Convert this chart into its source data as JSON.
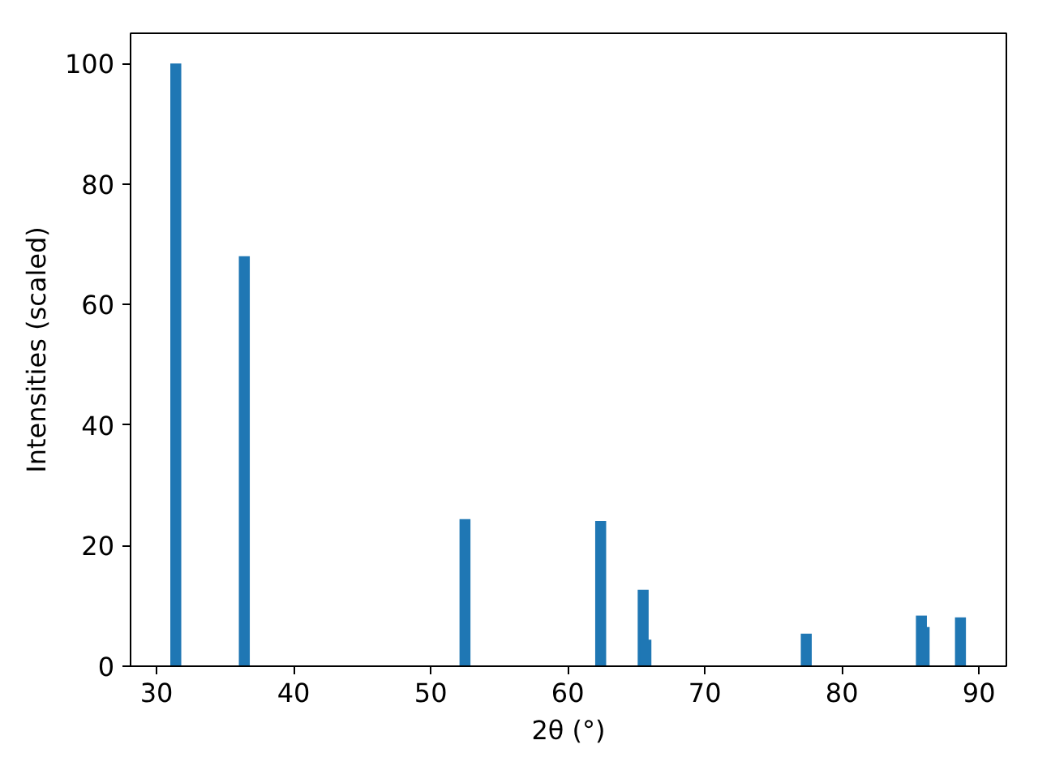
{
  "chart_data": {
    "type": "bar",
    "xlabel": "2θ (°)",
    "ylabel": "Intensities (scaled)",
    "x": [
      31.4,
      36.4,
      52.5,
      62.4,
      65.5,
      65.7,
      77.4,
      85.8,
      86.0,
      88.65
    ],
    "values": [
      100,
      68,
      24.4,
      24.1,
      12.7,
      4.4,
      5.4,
      8.4,
      6.5,
      8.1
    ],
    "color": "#1f77b4",
    "xlim": [
      28.1,
      92.0
    ],
    "xticks": [
      30,
      40,
      50,
      60,
      70,
      80,
      90
    ],
    "ylim": [
      0,
      105
    ],
    "yticks": [
      0,
      20,
      40,
      60,
      80,
      100
    ],
    "grid": false
  }
}
